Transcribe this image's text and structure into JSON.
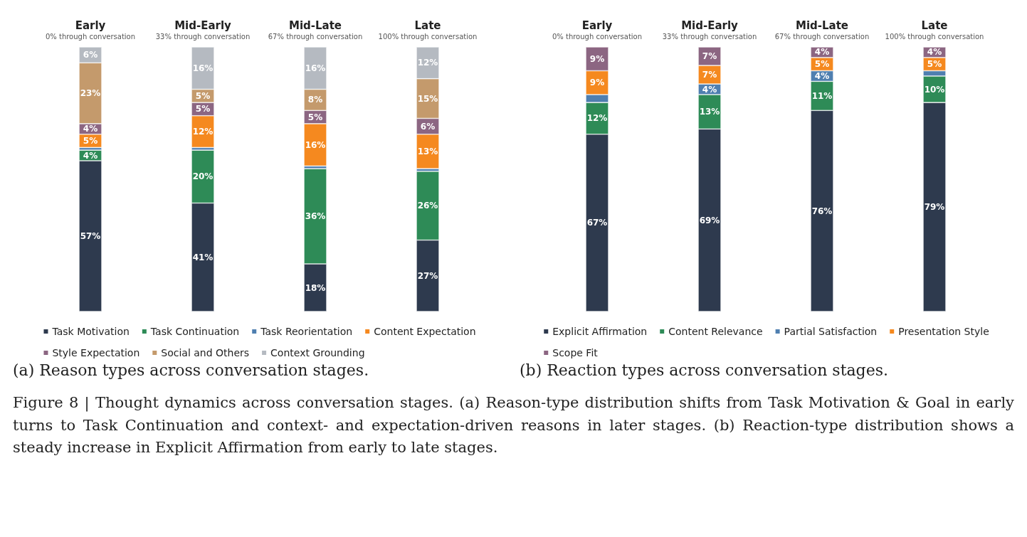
{
  "chart_data": [
    {
      "type": "bar",
      "stacked": true,
      "tick_labels": "x",
      "grid": false,
      "legend": "bottom",
      "categories": [
        "Early\n0% through conversation",
        "Mid-Early\n33% through conversation",
        "Mid-Late\n67% through conversation",
        "Late\n100% through conversation"
      ],
      "series": [
        {
          "name": "Task Motivation",
          "color": "#2e3a4e",
          "values": [
            57,
            41,
            18,
            27
          ],
          "value_labels": [
            "57%",
            "41%",
            "18%",
            "27%"
          ]
        },
        {
          "name": "Task Continuation",
          "color": "#2e8b57",
          "values": [
            4,
            20,
            36,
            26
          ],
          "value_labels": [
            "4%",
            "20%",
            "36%",
            "26%"
          ]
        },
        {
          "name": "Task Reorientation",
          "color": "#4f7fb0",
          "values": [
            1,
            1,
            1,
            1
          ],
          "value_labels": [
            null,
            null,
            null,
            null
          ]
        },
        {
          "name": "Content Expectation",
          "color": "#f5891f",
          "values": [
            5,
            12,
            16,
            13
          ],
          "value_labels": [
            "5%",
            "12%",
            "16%",
            "13%"
          ]
        },
        {
          "name": "Style Expectation",
          "color": "#8c6682",
          "values": [
            4,
            5,
            5,
            6
          ],
          "value_labels": [
            "4%",
            "5%",
            "5%",
            "6%"
          ]
        },
        {
          "name": "Social and Others",
          "color": "#c49a6c",
          "values": [
            23,
            5,
            8,
            15
          ],
          "value_labels": [
            "23%",
            "5%",
            "8%",
            "15%"
          ]
        },
        {
          "name": "Context Grounding",
          "color": "#b5bac1",
          "values": [
            6,
            16,
            16,
            12
          ],
          "value_labels": [
            "6%",
            "16%",
            "16%",
            "12%"
          ]
        }
      ],
      "annotations": [
        "(a) Reason types across conversation stages."
      ]
    },
    {
      "type": "bar",
      "stacked": true,
      "tick_labels": "x",
      "grid": false,
      "legend": "bottom",
      "categories": [
        "Early\n0% through conversation",
        "Mid-Early\n33% through conversation",
        "Mid-Late\n67% through conversation",
        "Late\n100% through conversation"
      ],
      "series": [
        {
          "name": "Explicit Affirmation",
          "color": "#2e3a4e",
          "values": [
            67,
            69,
            76,
            79
          ],
          "value_labels": [
            "67%",
            "69%",
            "76%",
            "79%"
          ]
        },
        {
          "name": "Content Relevance",
          "color": "#2e8b57",
          "values": [
            12,
            13,
            11,
            10
          ],
          "value_labels": [
            "12%",
            "13%",
            "11%",
            "10%"
          ]
        },
        {
          "name": "Partial Satisfaction",
          "color": "#4f7fb0",
          "values": [
            3,
            4,
            4,
            2
          ],
          "value_labels": [
            null,
            "4%",
            "4%",
            null
          ]
        },
        {
          "name": "Presentation Style",
          "color": "#f5891f",
          "values": [
            9,
            7,
            5,
            5
          ],
          "value_labels": [
            "9%",
            "7%",
            "5%",
            "5%"
          ]
        },
        {
          "name": "Scope Fit",
          "color": "#8c6682",
          "values": [
            9,
            7,
            4,
            4
          ],
          "value_labels": [
            "9%",
            "7%",
            "4%",
            "4%"
          ]
        }
      ],
      "annotations": [
        "(b) Reaction types across conversation stages.",
        "Figure 8 | Thought dynamics across conversation stages. (a) Reason-type distribution shifts from Task Motivation & Goal in early turns to Task Continuation and context- and expectation-driven reasons in later stages. (b) Reaction-type distribution shows a steady increase in Explicit Affirmation from early to late stages."
      ]
    }
  ]
}
